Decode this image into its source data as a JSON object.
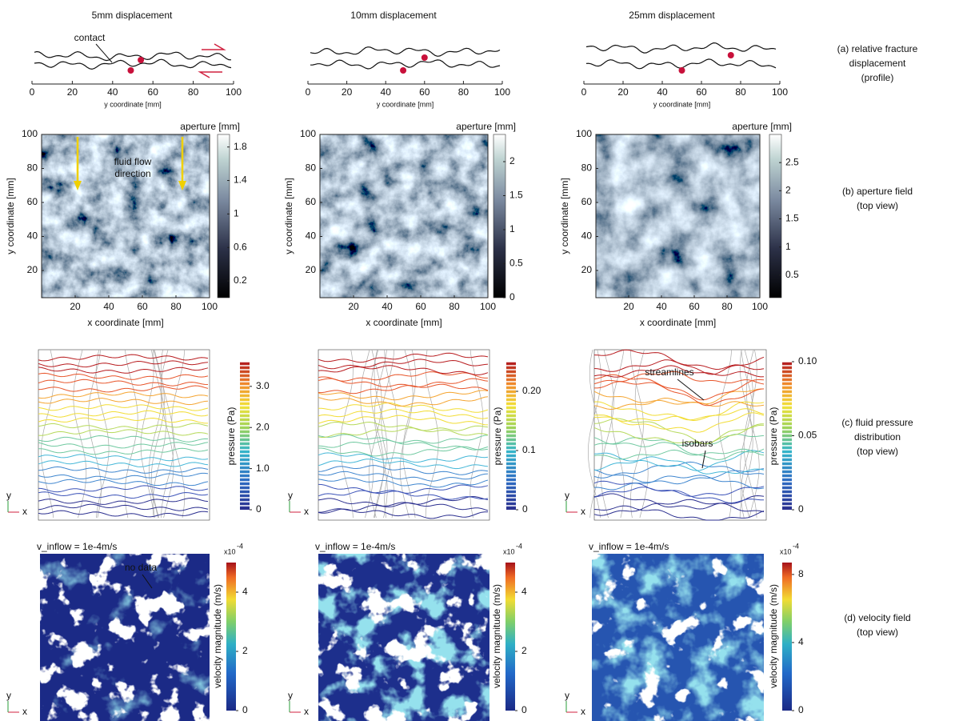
{
  "columns": [
    {
      "title": "5mm displacement",
      "profile": {
        "annotation": "contact",
        "xlabel": "y coordinate [mm]",
        "xlim": [
          0,
          100
        ],
        "xticks": [
          0,
          20,
          40,
          60,
          80,
          100
        ]
      },
      "aperture": {
        "xlabel": "x coordinate [mm]",
        "ylabel": "y coordinate [mm]",
        "xlim": [
          0,
          100
        ],
        "ylim": [
          4,
          100
        ],
        "xticks": [
          20,
          40,
          60,
          80,
          100
        ],
        "yticks": [
          20,
          40,
          60,
          80,
          100
        ],
        "colorbar_title": "aperture [mm]",
        "colorbar_lim": [
          0,
          1.95
        ],
        "colorbar_ticks": [
          0.2,
          0.6,
          1,
          1.4,
          1.8
        ],
        "annotation": [
          "fluid flow",
          "direction"
        ]
      },
      "pressure": {
        "colorbar_label": "pressure (Pa)",
        "colorbar_lim": [
          0,
          3.6
        ],
        "colorbar_ticks": [
          0,
          {
            "value": 1,
            "label": "1.0"
          },
          {
            "value": 2,
            "label": "2.0"
          },
          {
            "value": 3,
            "label": "3.0"
          }
        ],
        "annotations": []
      },
      "velocity": {
        "header": "v_inflow = 1e-4m/s",
        "colorbar_label": "velocity magnitude (m/s)",
        "scale_base": "x10",
        "scale_exp": "-4",
        "colorbar_lim": [
          0,
          5
        ],
        "colorbar_ticks": [
          0,
          2,
          4
        ],
        "annotation": "no data"
      }
    },
    {
      "title": "10mm displacement",
      "profile": {
        "xlabel": "y coordinate [mm]",
        "xlim": [
          0,
          100
        ],
        "xticks": [
          0,
          20,
          40,
          60,
          80,
          100
        ]
      },
      "aperture": {
        "xlabel": "x coordinate [mm]",
        "ylabel": "y coordinate [mm]",
        "xlim": [
          0,
          100
        ],
        "ylim": [
          4,
          100
        ],
        "xticks": [
          20,
          40,
          60,
          80,
          100
        ],
        "yticks": [
          20,
          40,
          60,
          80,
          100
        ],
        "colorbar_title": "aperture [mm]",
        "colorbar_lim": [
          0,
          2.4
        ],
        "colorbar_ticks": [
          0,
          0.5,
          1,
          1.5,
          2
        ]
      },
      "pressure": {
        "colorbar_label": "pressure (Pa)",
        "colorbar_lim": [
          0,
          0.25
        ],
        "colorbar_ticks": [
          0,
          0.1,
          {
            "value": 0.2,
            "label": "0.20"
          }
        ],
        "annotations": []
      },
      "velocity": {
        "header": "v_inflow = 1e-4m/s",
        "colorbar_label": "velocity magnitude (m/s)",
        "scale_base": "x10",
        "scale_exp": "-4",
        "colorbar_lim": [
          0,
          5
        ],
        "colorbar_ticks": [
          0,
          2,
          4
        ]
      }
    },
    {
      "title": "25mm displacement",
      "profile": {
        "xlabel": "y coordinate [mm]",
        "xlim": [
          0,
          100
        ],
        "xticks": [
          0,
          20,
          40,
          60,
          80,
          100
        ]
      },
      "aperture": {
        "xlabel": "x coordinate [mm]",
        "ylabel": "y coordinate [mm]",
        "xlim": [
          0,
          100
        ],
        "ylim": [
          4,
          100
        ],
        "xticks": [
          20,
          40,
          60,
          80,
          100
        ],
        "yticks": [
          20,
          40,
          60,
          80,
          100
        ],
        "colorbar_title": "aperture [mm]",
        "colorbar_lim": [
          0.1,
          3.0
        ],
        "colorbar_ticks": [
          0.5,
          1,
          1.5,
          2,
          2.5
        ]
      },
      "pressure": {
        "colorbar_label": "pressure (Pa)",
        "colorbar_lim": [
          0,
          0.1
        ],
        "colorbar_ticks": [
          0,
          0.05,
          {
            "value": 0.1,
            "label": "0.10"
          }
        ],
        "annotations": [
          "streamlines",
          "isobars"
        ]
      },
      "velocity": {
        "header": "v_inflow = 1e-4m/s",
        "colorbar_label": "velocity magnitude (m/s)",
        "scale_base": "x10",
        "scale_exp": "-4",
        "colorbar_lim": [
          0,
          8.7
        ],
        "colorbar_ticks": [
          0,
          4,
          8
        ]
      }
    }
  ],
  "axes_triad": {
    "x": "x",
    "y": "y"
  },
  "row_labels": [
    [
      "(a) relative fracture",
      "displacement",
      "(profile)"
    ],
    [
      "(b) aperture field",
      "(top view)"
    ],
    [
      "(c) fluid pressure",
      "distribution",
      "(top view)"
    ],
    [
      "(d) velocity field",
      "(top view)"
    ]
  ]
}
